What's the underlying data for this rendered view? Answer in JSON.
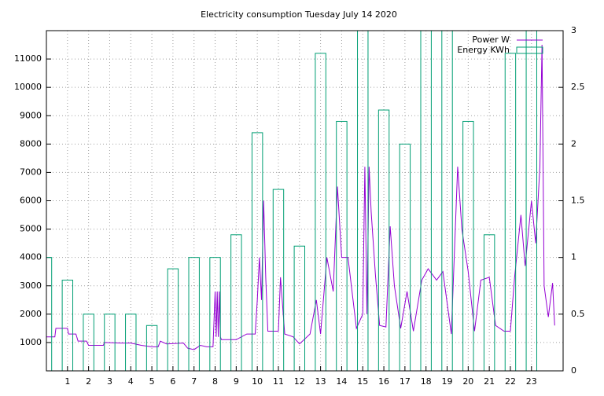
{
  "chart_data": {
    "type": "line-and-boxes",
    "title": "Electricity consumption Tuesday July 14 2020",
    "xlim": [
      0,
      24.5
    ],
    "xticks": [
      1,
      2,
      3,
      4,
      5,
      6,
      7,
      8,
      9,
      10,
      11,
      12,
      13,
      14,
      15,
      16,
      17,
      18,
      19,
      20,
      21,
      22,
      23
    ],
    "ylim": [
      0,
      12000
    ],
    "yticks": [
      1000,
      2000,
      3000,
      4000,
      5000,
      6000,
      7000,
      8000,
      9000,
      10000,
      11000
    ],
    "y2lim": [
      0,
      3
    ],
    "y2ticks": [
      0,
      0.5,
      1,
      1.5,
      2,
      2.5,
      3
    ],
    "grid": true,
    "legend": "top right",
    "series": [
      {
        "name": "Power W",
        "color": "#9400d3",
        "x": [
          0,
          0.4,
          0.45,
          1,
          1.05,
          1.4,
          1.5,
          1.9,
          2,
          2.7,
          2.75,
          3.5,
          4,
          4.5,
          5,
          5.3,
          5.4,
          5.7,
          6.5,
          6.7,
          7,
          7.3,
          7.6,
          7.9,
          8,
          8.05,
          8.1,
          8.15,
          8.2,
          8.25,
          8.3,
          9,
          9.5,
          9.9,
          10,
          10.1,
          10.2,
          10.3,
          10.4,
          10.5,
          11,
          11.1,
          11.3,
          11.7,
          12,
          12.5,
          12.8,
          13,
          13.3,
          13.6,
          13.8,
          14,
          14.3,
          14.7,
          15,
          15.1,
          15.2,
          15.3,
          15.4,
          15.6,
          15.8,
          16.1,
          16.3,
          16.5,
          16.8,
          17.1,
          17.4,
          17.8,
          18.1,
          18.5,
          18.8,
          19.2,
          19.5,
          19.7,
          20,
          20.3,
          20.6,
          21,
          21.3,
          21.7,
          22,
          22.2,
          22.5,
          22.7,
          23,
          23.2,
          23.4,
          23.5,
          23.6,
          23.8,
          24,
          24.1
        ],
        "values": [
          1200,
          1200,
          1500,
          1500,
          1300,
          1300,
          1050,
          1050,
          900,
          900,
          1000,
          980,
          980,
          900,
          850,
          850,
          1050,
          950,
          980,
          800,
          750,
          900,
          850,
          850,
          2800,
          1200,
          2800,
          1200,
          2800,
          1200,
          1100,
          1100,
          1300,
          1300,
          2500,
          4000,
          2500,
          6000,
          3300,
          1400,
          1400,
          3300,
          1300,
          1200,
          950,
          1300,
          2500,
          1300,
          4000,
          2800,
          6500,
          4000,
          4000,
          1500,
          2000,
          7200,
          2000,
          7200,
          5600,
          3400,
          1600,
          1550,
          5100,
          3000,
          1500,
          2800,
          1400,
          3200,
          3600,
          3200,
          3500,
          1300,
          7200,
          5000,
          3500,
          1400,
          3200,
          3300,
          1600,
          1400,
          1400,
          3300,
          5500,
          3700,
          6000,
          4500,
          7200,
          11500,
          3000,
          1900,
          3100,
          1600
        ]
      },
      {
        "name": "Energy KWh",
        "color": "#009e73",
        "axis": "y2",
        "x": [
          0,
          1,
          2,
          3,
          4,
          5,
          6,
          7,
          8,
          9,
          10,
          11,
          12,
          13,
          14,
          15,
          16,
          17,
          18,
          19,
          20,
          21,
          22,
          23
        ],
        "values": [
          1.0,
          0.8,
          0.5,
          0.5,
          0.5,
          0.4,
          0.9,
          1.0,
          1.0,
          1.2,
          2.1,
          1.6,
          1.1,
          2.8,
          2.2,
          3.1,
          2.3,
          2.0,
          3.3,
          3.2,
          2.2,
          1.2,
          2.8,
          3.1
        ]
      }
    ]
  }
}
